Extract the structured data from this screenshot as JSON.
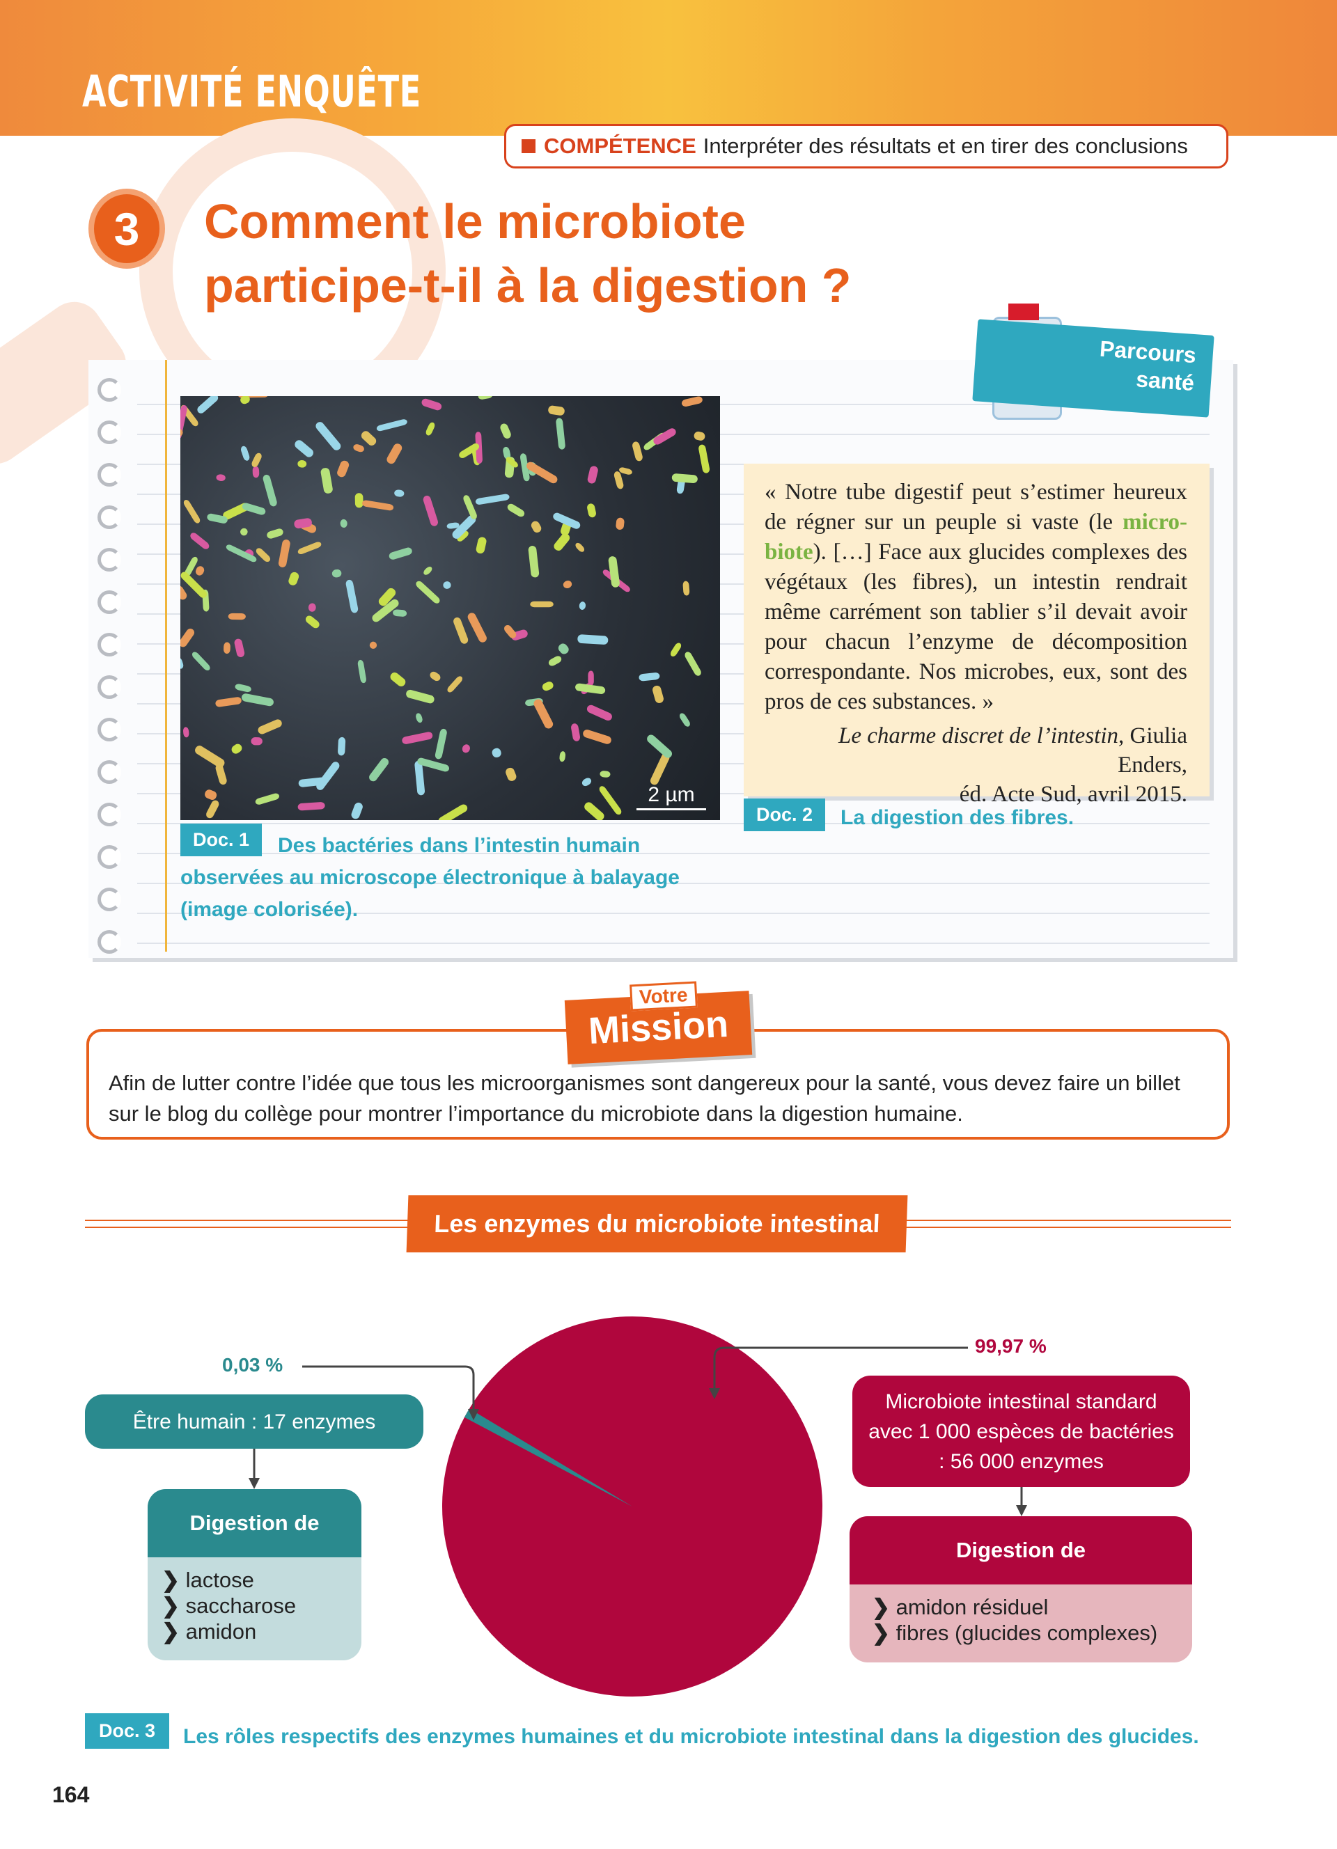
{
  "header": {
    "banner_title": "ACTIVITÉ ENQUÊTE"
  },
  "competence": {
    "keyword": "COMPÉTENCE",
    "text": "Interpréter des résultats et en tirer des conclusions"
  },
  "activity": {
    "number": "3",
    "title_line1": "Comment le microbiote",
    "title_line2": "participe-t-il à la digestion ?"
  },
  "badge": {
    "line1": "Parcours",
    "line2": "santé"
  },
  "doc1": {
    "label": "Doc. 1",
    "caption": "Des bactéries dans l’intestin humain observées au microscope électronique à balayage (image colorisée).",
    "scale": "2 µm"
  },
  "doc2": {
    "label": "Doc. 2",
    "caption": "La digestion des fibres.",
    "quote_before": "« Notre tube digestif peut s’estimer heureux de régner sur un peuple si vaste (le ",
    "quote_highlight": "micro­biote",
    "quote_after": "). […] Face aux glucides complexes des végétaux (les fibres), un intestin rendrait même carrément son tablier s’il devait avoir pour chacun l’enzyme de décomposition correspondante. Nos microbes, eux, sont des pros de ces substances. »",
    "source_title": "Le charme discret de l’intestin",
    "source_rest": ", Giulia Enders,",
    "source_line2": "éd. Acte Sud, avril 2015."
  },
  "mission": {
    "votre": "Votre",
    "label": "Mission",
    "text": "Afin de lutter contre l’idée que tous les microorganismes sont dangereux pour la santé, vous devez faire un billet sur le blog du collège pour montrer l’importance du microbiote dans la digestion humaine."
  },
  "section": {
    "title": "Les enzymes du microbiote intestinal"
  },
  "chart_data": {
    "type": "pie",
    "slices": [
      {
        "label": "0,03 %",
        "value": 0.03,
        "color": "#2a8a8e",
        "box": "Être humain : 17 enzymes"
      },
      {
        "label": "99,97 %",
        "value": 99.97,
        "color": "#b0063d",
        "box": "Microbiote intestinal standard avec 1 000 espèces de bactéries : 56 000 enzymes"
      }
    ]
  },
  "human": {
    "box": "Être humain : 17 enzymes",
    "digestion_title": "Digestion de",
    "items": [
      "lactose",
      "saccharose",
      "amidon"
    ]
  },
  "microbiota": {
    "box": "Microbiote intestinal standard avec 1 000 espèces de bactéries : 56 000 enzymes",
    "digestion_title": "Digestion de",
    "items": [
      "amidon résiduel",
      "fibres (glucides complexes)"
    ]
  },
  "doc3": {
    "label": "Doc. 3",
    "caption": "Les rôles respectifs des enzymes humaines et du microbiote intestinal dans la digestion des glucides."
  },
  "page_number": "164"
}
